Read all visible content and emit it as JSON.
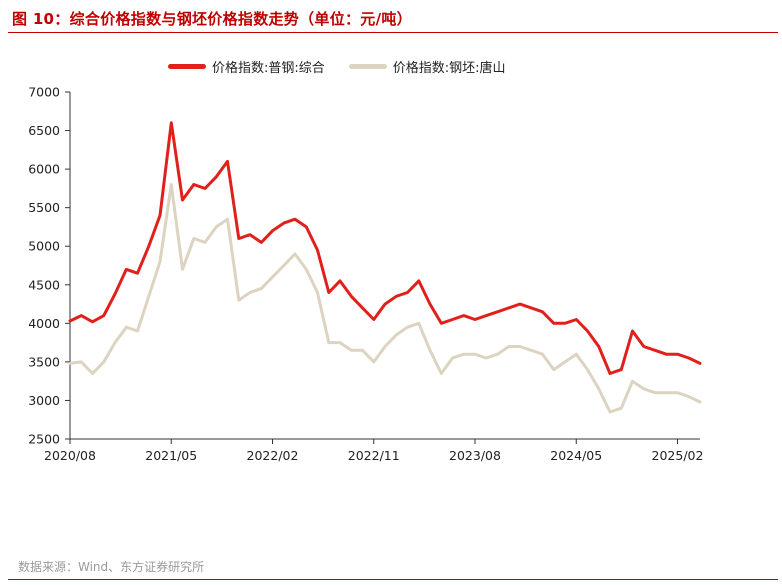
{
  "header": {
    "title": "图 10：综合价格指数与钢坯价格指数走势（单位：元/吨）"
  },
  "footer": {
    "source": "数据来源：Wind、东方证券研究所"
  },
  "colors": {
    "accent": "#c00000",
    "series_1": "#e0201b",
    "series_2": "#dcd3c0"
  },
  "chart_data": {
    "type": "line",
    "title": "综合价格指数与钢坯价格指数走势",
    "unit": "元/吨",
    "xlabel": "",
    "ylabel": "",
    "ylim": [
      2500,
      7000
    ],
    "yticks": [
      2500,
      3000,
      3500,
      4000,
      4500,
      5000,
      5500,
      6000,
      6500,
      7000
    ],
    "xticks": [
      "2020/08",
      "2021/05",
      "2022/02",
      "2022/11",
      "2023/08",
      "2024/05",
      "2025/02"
    ],
    "x_range": [
      "2020/08",
      "2025/04"
    ],
    "legend_position": "top",
    "grid": false,
    "series": [
      {
        "name": "价格指数:普钢:综合",
        "color": "#e0201b",
        "points": [
          [
            "2020/08",
            4030
          ],
          [
            "2020/09",
            4100
          ],
          [
            "2020/10",
            4020
          ],
          [
            "2020/11",
            4100
          ],
          [
            "2020/12",
            4380
          ],
          [
            "2021/01",
            4700
          ],
          [
            "2021/02",
            4650
          ],
          [
            "2021/03",
            5000
          ],
          [
            "2021/04",
            5400
          ],
          [
            "2021/05",
            6600
          ],
          [
            "2021/06",
            5600
          ],
          [
            "2021/07",
            5800
          ],
          [
            "2021/08",
            5750
          ],
          [
            "2021/09",
            5900
          ],
          [
            "2021/10",
            6100
          ],
          [
            "2021/11",
            5100
          ],
          [
            "2021/12",
            5150
          ],
          [
            "2022/01",
            5050
          ],
          [
            "2022/02",
            5200
          ],
          [
            "2022/03",
            5300
          ],
          [
            "2022/04",
            5350
          ],
          [
            "2022/05",
            5250
          ],
          [
            "2022/06",
            4950
          ],
          [
            "2022/07",
            4400
          ],
          [
            "2022/08",
            4550
          ],
          [
            "2022/09",
            4350
          ],
          [
            "2022/10",
            4200
          ],
          [
            "2022/11",
            4050
          ],
          [
            "2022/12",
            4250
          ],
          [
            "2023/01",
            4350
          ],
          [
            "2023/02",
            4400
          ],
          [
            "2023/03",
            4550
          ],
          [
            "2023/04",
            4250
          ],
          [
            "2023/05",
            4000
          ],
          [
            "2023/06",
            4050
          ],
          [
            "2023/07",
            4100
          ],
          [
            "2023/08",
            4050
          ],
          [
            "2023/09",
            4100
          ],
          [
            "2023/10",
            4150
          ],
          [
            "2023/11",
            4200
          ],
          [
            "2023/12",
            4250
          ],
          [
            "2024/01",
            4200
          ],
          [
            "2024/02",
            4150
          ],
          [
            "2024/03",
            4000
          ],
          [
            "2024/04",
            4000
          ],
          [
            "2024/05",
            4050
          ],
          [
            "2024/06",
            3900
          ],
          [
            "2024/07",
            3700
          ],
          [
            "2024/08",
            3350
          ],
          [
            "2024/09",
            3400
          ],
          [
            "2024/10",
            3900
          ],
          [
            "2024/11",
            3700
          ],
          [
            "2024/12",
            3650
          ],
          [
            "2025/01",
            3600
          ],
          [
            "2025/02",
            3600
          ],
          [
            "2025/03",
            3550
          ],
          [
            "2025/04",
            3480
          ]
        ]
      },
      {
        "name": "价格指数:钢坯:唐山",
        "color": "#dcd3c0",
        "points": [
          [
            "2020/08",
            3480
          ],
          [
            "2020/09",
            3500
          ],
          [
            "2020/10",
            3350
          ],
          [
            "2020/11",
            3500
          ],
          [
            "2020/12",
            3750
          ],
          [
            "2021/01",
            3950
          ],
          [
            "2021/02",
            3900
          ],
          [
            "2021/03",
            4350
          ],
          [
            "2021/04",
            4800
          ],
          [
            "2021/05",
            5800
          ],
          [
            "2021/06",
            4700
          ],
          [
            "2021/07",
            5100
          ],
          [
            "2021/08",
            5050
          ],
          [
            "2021/09",
            5250
          ],
          [
            "2021/10",
            5350
          ],
          [
            "2021/11",
            4300
          ],
          [
            "2021/12",
            4400
          ],
          [
            "2022/01",
            4450
          ],
          [
            "2022/02",
            4600
          ],
          [
            "2022/03",
            4750
          ],
          [
            "2022/04",
            4900
          ],
          [
            "2022/05",
            4700
          ],
          [
            "2022/06",
            4400
          ],
          [
            "2022/07",
            3750
          ],
          [
            "2022/08",
            3750
          ],
          [
            "2022/09",
            3650
          ],
          [
            "2022/10",
            3650
          ],
          [
            "2022/11",
            3500
          ],
          [
            "2022/12",
            3700
          ],
          [
            "2023/01",
            3850
          ],
          [
            "2023/02",
            3950
          ],
          [
            "2023/03",
            4000
          ],
          [
            "2023/04",
            3650
          ],
          [
            "2023/05",
            3350
          ],
          [
            "2023/06",
            3550
          ],
          [
            "2023/07",
            3600
          ],
          [
            "2023/08",
            3600
          ],
          [
            "2023/09",
            3550
          ],
          [
            "2023/10",
            3600
          ],
          [
            "2023/11",
            3700
          ],
          [
            "2023/12",
            3700
          ],
          [
            "2024/01",
            3650
          ],
          [
            "2024/02",
            3600
          ],
          [
            "2024/03",
            3400
          ],
          [
            "2024/04",
            3500
          ],
          [
            "2024/05",
            3600
          ],
          [
            "2024/06",
            3400
          ],
          [
            "2024/07",
            3150
          ],
          [
            "2024/08",
            2850
          ],
          [
            "2024/09",
            2900
          ],
          [
            "2024/10",
            3250
          ],
          [
            "2024/11",
            3150
          ],
          [
            "2024/12",
            3100
          ],
          [
            "2025/01",
            3100
          ],
          [
            "2025/02",
            3100
          ],
          [
            "2025/03",
            3050
          ],
          [
            "2025/04",
            2980
          ]
        ]
      }
    ]
  }
}
